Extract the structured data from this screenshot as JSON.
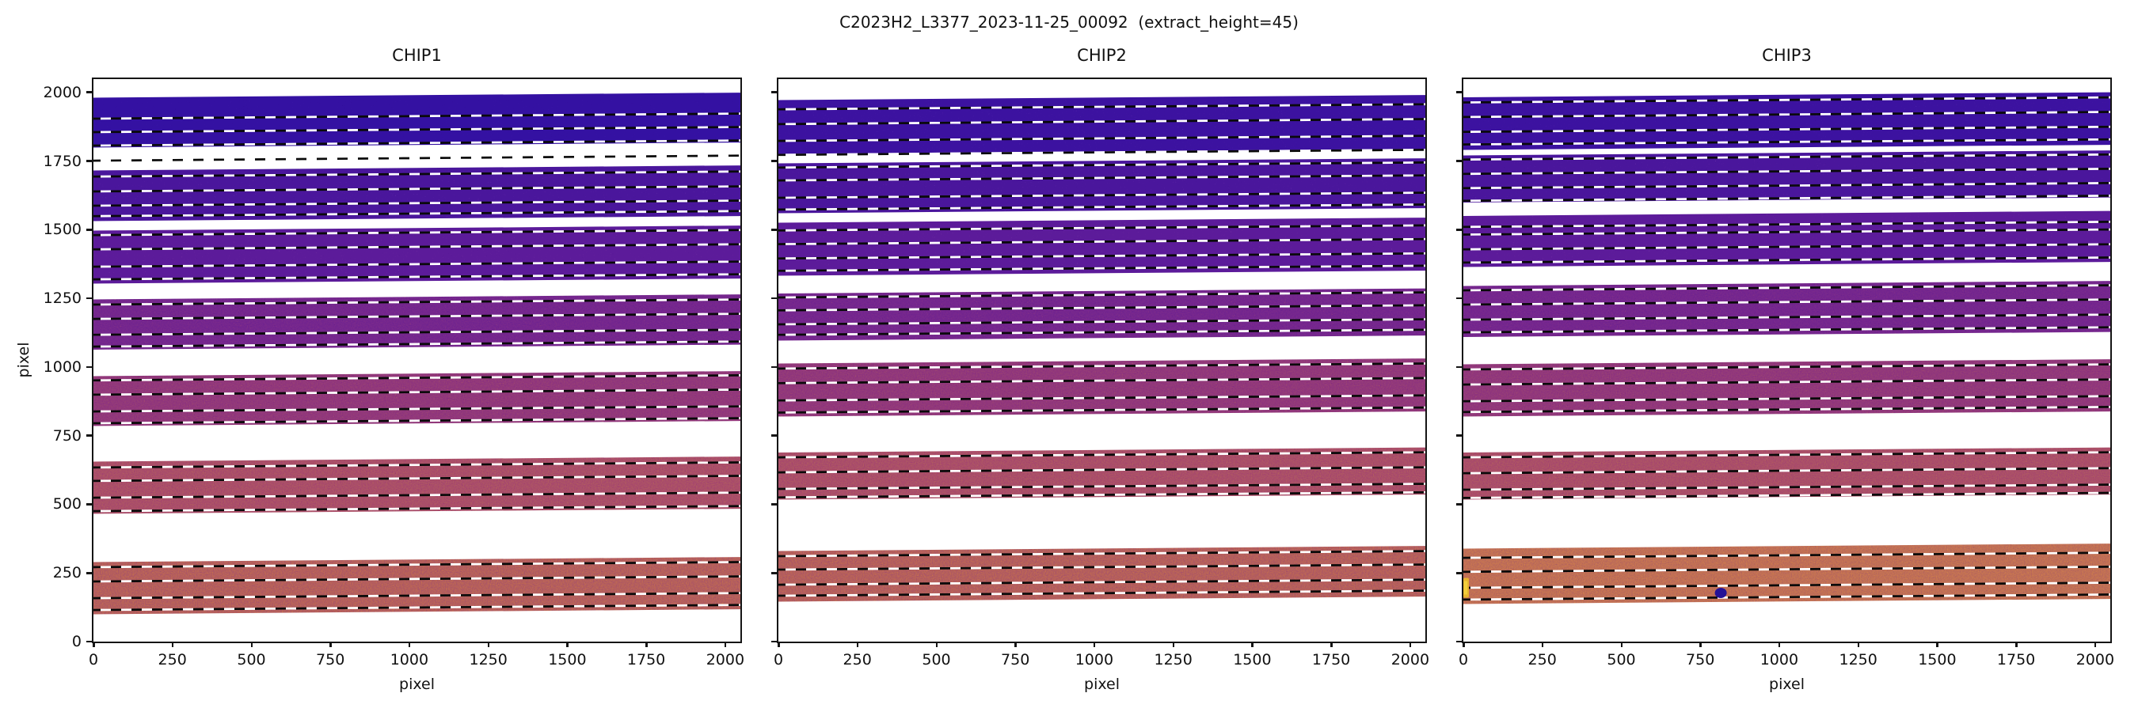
{
  "title": "C2023H2_L3377_2023-11-25_00092  (extract_height=45)",
  "chart_data": {
    "type": "heatmap",
    "title": "C2023H2_L3377_2023-11-25_00092  (extract_height=45)",
    "extract_height": 45,
    "xlabel": "pixel",
    "ylabel": "pixel",
    "x_range": [
      0,
      2048
    ],
    "y_range": [
      0,
      2048
    ],
    "x_ticks": [
      0,
      250,
      500,
      750,
      1000,
      1250,
      1500,
      1750,
      2000
    ],
    "y_ticks": [
      0,
      250,
      500,
      750,
      1000,
      1250,
      1500,
      1750,
      2000
    ],
    "grid": false,
    "tilt_data_units": 19,
    "trace_line_style": "black-white-dashed",
    "palettes": {
      "o1": [
        "#2c0b8a",
        "#3511a2",
        "#3511a2",
        "#4a1fb5"
      ],
      "o1b": [
        "#2c0c85",
        "#3d13a0",
        "#3d13a0",
        "#7a40c0"
      ],
      "o2": [
        "#360e86",
        "#4a169c",
        "#4a169c",
        "#9a50c0"
      ],
      "o3": [
        "#44127f",
        "#5d1c9b",
        "#5d1c9b",
        "#b060a8"
      ],
      "o4": [
        "#531677",
        "#6f2390",
        "#7c2b8c",
        "#d07c40"
      ],
      "o5": [
        "#651e6e",
        "#8c3180",
        "#984076",
        "#d07c42"
      ],
      "o6": [
        "#7b2a60",
        "#a54470",
        "#b05a62",
        "#d6813f"
      ],
      "o7": [
        "#8c3a5e",
        "#aa5468",
        "#c06a52",
        "#e09048"
      ],
      "o7c": [
        "#8e4460",
        "#b5655e",
        "#cc7a4e",
        "#e89a4e"
      ]
    },
    "chips": [
      {
        "label": "CHIP1",
        "show_y_tick_labels": true,
        "standalone_trace_lines": [
          1751
        ],
        "bands": [
          {
            "y": [
              1803,
              1976
            ],
            "palette": "o1",
            "trace_lines": [
              1904,
              1855,
              1806
            ]
          },
          {
            "y": [
              1535,
              1711
            ],
            "palette": "o2",
            "trace_lines": [
              1693,
              1639,
              1587,
              1549
            ]
          },
          {
            "y": [
              1308,
              1492
            ],
            "palette": "o3",
            "trace_lines": [
              1480,
              1428,
              1365,
              1319
            ]
          },
          {
            "y": [
              1068,
              1241
            ],
            "palette": "o4",
            "trace_lines": [
              1227,
              1175,
              1117,
              1074
            ]
          },
          {
            "y": [
              789,
              962
            ],
            "palette": "o5",
            "trace_lines": [
              951,
              899,
              838,
              795
            ]
          },
          {
            "y": [
              469,
              651
            ],
            "palette": "o6",
            "trace_lines": [
              634,
              585,
              524,
              475
            ]
          },
          {
            "y": [
              104,
              285
            ],
            "palette": "o7",
            "trace_lines": [
              271,
              219,
              158,
              115
            ]
          }
        ],
        "markers": []
      },
      {
        "label": "CHIP2",
        "show_y_tick_labels": false,
        "standalone_trace_lines": [
          1772
        ],
        "bands": [
          {
            "y": [
              1780,
              1967
            ],
            "palette": "o1b",
            "trace_lines": [
              1938,
              1884,
              1823
            ]
          },
          {
            "y": [
              1564,
              1737
            ],
            "palette": "o2",
            "trace_lines": [
              1726,
              1679,
              1616,
              1573
            ]
          },
          {
            "y": [
              1337,
              1521
            ],
            "palette": "o3",
            "trace_lines": [
              1497,
              1447,
              1395,
              1350
            ]
          },
          {
            "y": [
              1100,
              1264
            ],
            "palette": "o4",
            "trace_lines": [
              1253,
              1206,
              1155,
              1117
            ]
          },
          {
            "y": [
              824,
              1008
            ],
            "palette": "o5",
            "trace_lines": [
              994,
              941,
              878,
              834
            ]
          },
          {
            "y": [
              521,
              685
            ],
            "palette": "o6",
            "trace_lines": [
              671,
              616,
              556,
              525
            ]
          },
          {
            "y": [
              150,
              325
            ],
            "palette": "o7",
            "trace_lines": [
              311,
              262,
              207,
              167
            ]
          }
        ],
        "markers": []
      },
      {
        "label": "CHIP3",
        "show_y_tick_labels": false,
        "standalone_trace_lines": [],
        "bands": [
          {
            "y": [
              1795,
              1977
            ],
            "palette": "o1b",
            "trace_lines": [
              1963,
              1910,
              1856,
              1810
            ]
          },
          {
            "y": [
              1602,
              1766
            ],
            "palette": "o2",
            "trace_lines": [
              1755,
              1703,
              1651,
              1605
            ]
          },
          {
            "y": [
              1368,
              1545
            ],
            "palette": "o3",
            "trace_lines": [
              1510,
              1482,
              1428,
              1380
            ]
          },
          {
            "y": [
              1114,
              1290
            ],
            "palette": "o4",
            "trace_lines": [
              1279,
              1227,
              1172,
              1126
            ]
          },
          {
            "y": [
              824,
              1005
            ],
            "palette": "o5",
            "trace_lines": [
              991,
              936,
              875,
              836
            ]
          },
          {
            "y": [
              521,
              685
            ],
            "palette": "o6",
            "trace_lines": [
              671,
              613,
              553,
              523
            ]
          },
          {
            "y": [
              141,
              334
            ],
            "palette": "o7c",
            "trace_lines": [
              305,
              254,
              196,
              153
            ]
          }
        ],
        "markers": [
          {
            "kind": "saturated-edge-blob",
            "x": 4,
            "y_range": [
              160,
              232
            ],
            "color": "#e8b52e"
          },
          {
            "kind": "dead-pixel-dot",
            "x": 815,
            "y": 170,
            "color": "#241196"
          }
        ]
      }
    ]
  }
}
